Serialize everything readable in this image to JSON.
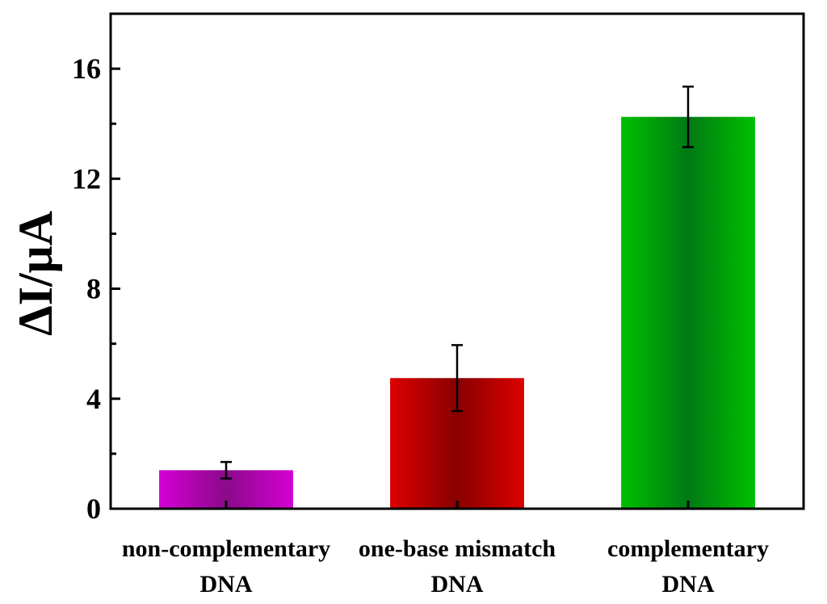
{
  "chart_data": {
    "type": "bar",
    "title": "",
    "xlabel": "",
    "ylabel": "ΔI/μA",
    "ylim": [
      0,
      18
    ],
    "yticks": [
      0,
      4,
      8,
      12,
      16
    ],
    "ytick_labels": [
      "0",
      "4",
      "8",
      "12",
      "16"
    ],
    "categories": [
      {
        "line1": "non-complementary",
        "line2": "DNA"
      },
      {
        "line1": "one-base mismatch",
        "line2": "DNA"
      },
      {
        "line1": "complementary",
        "line2": "DNA"
      }
    ],
    "values": [
      1.4,
      4.75,
      14.25
    ],
    "errors": [
      0.3,
      1.2,
      1.1
    ],
    "colors": [
      {
        "edge": "#d400d4",
        "center": "#8a0a8a"
      },
      {
        "edge": "#dd0000",
        "center": "#880000"
      },
      {
        "edge": "#00c000",
        "center": "#007a14"
      }
    ],
    "grid": false,
    "legend": "none"
  }
}
